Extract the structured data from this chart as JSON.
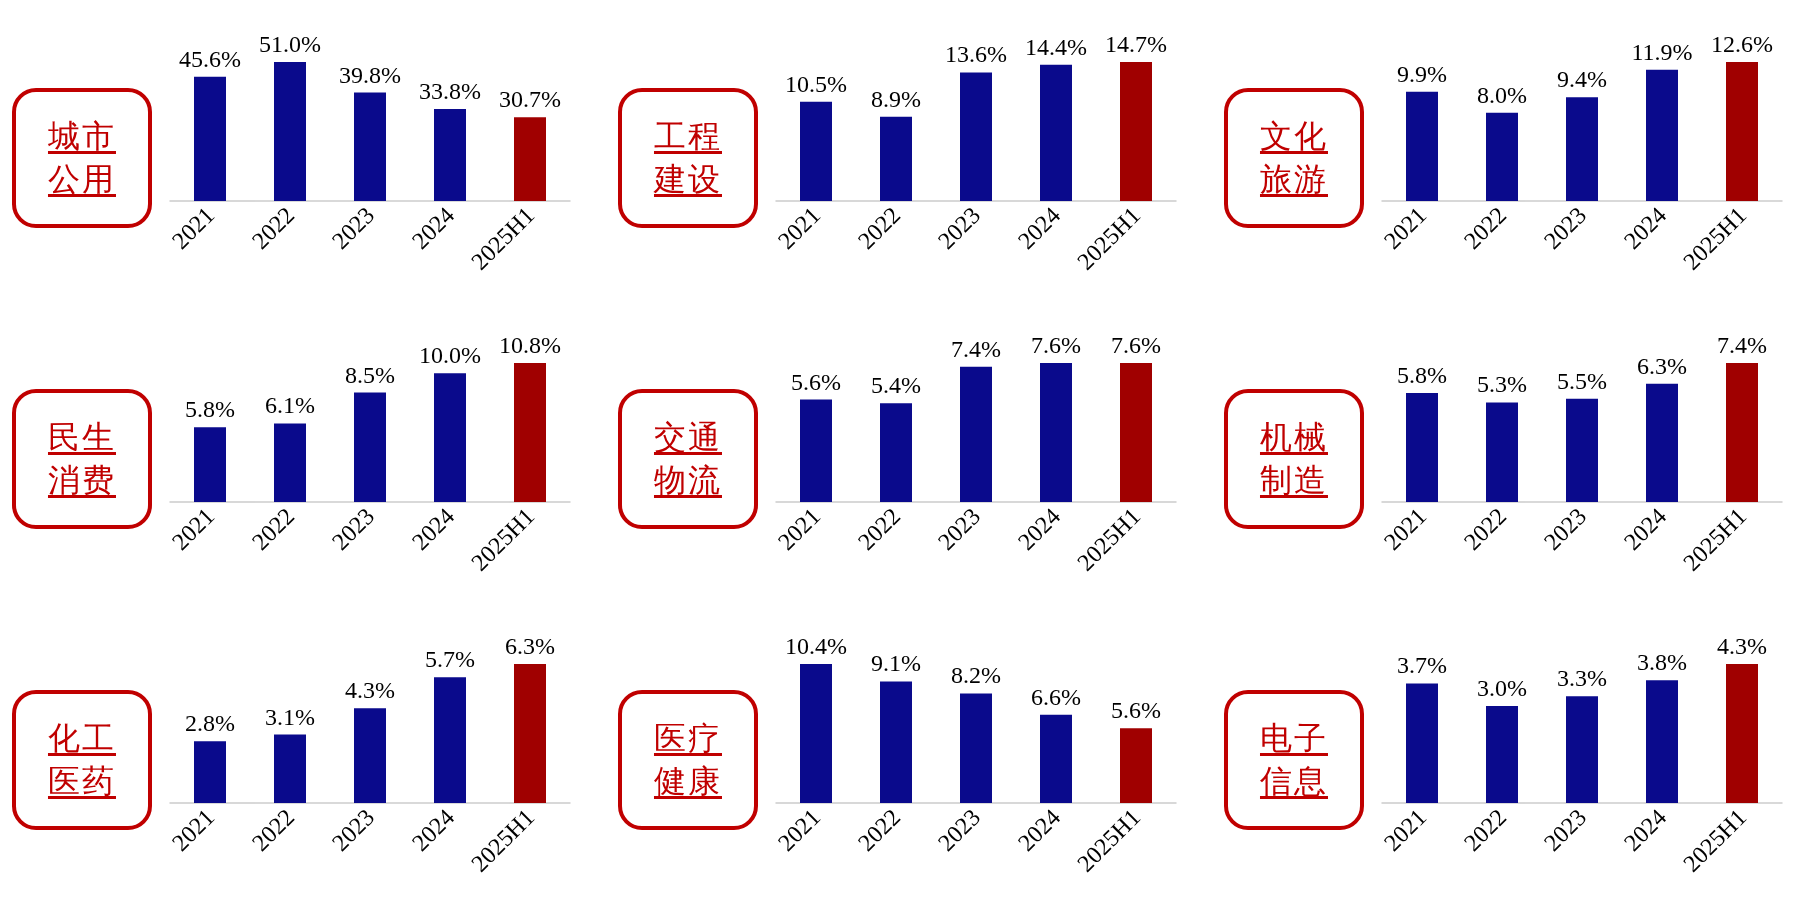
{
  "chart_data": [
    {
      "type": "bar",
      "title": "城市公用",
      "categories": [
        "2021",
        "2022",
        "2023",
        "2024",
        "2025H1"
      ],
      "values": [
        45.6,
        51.0,
        39.8,
        33.8,
        30.7
      ],
      "value_labels": [
        "45.6%",
        "51.0%",
        "39.8%",
        "33.8%",
        "30.7%"
      ],
      "colors": [
        "#0a0a8c",
        "#0a0a8c",
        "#0a0a8c",
        "#0a0a8c",
        "#a00000"
      ]
    },
    {
      "type": "bar",
      "title": "工程建设",
      "categories": [
        "2021",
        "2022",
        "2023",
        "2024",
        "2025H1"
      ],
      "values": [
        10.5,
        8.9,
        13.6,
        14.4,
        14.7
      ],
      "value_labels": [
        "10.5%",
        "8.9%",
        "13.6%",
        "14.4%",
        "14.7%"
      ],
      "colors": [
        "#0a0a8c",
        "#0a0a8c",
        "#0a0a8c",
        "#0a0a8c",
        "#a00000"
      ]
    },
    {
      "type": "bar",
      "title": "文化旅游",
      "categories": [
        "2021",
        "2022",
        "2023",
        "2024",
        "2025H1"
      ],
      "values": [
        9.9,
        8.0,
        9.4,
        11.9,
        12.6
      ],
      "value_labels": [
        "9.9%",
        "8.0%",
        "9.4%",
        "11.9%",
        "12.6%"
      ],
      "colors": [
        "#0a0a8c",
        "#0a0a8c",
        "#0a0a8c",
        "#0a0a8c",
        "#a00000"
      ]
    },
    {
      "type": "bar",
      "title": "民生消费",
      "categories": [
        "2021",
        "2022",
        "2023",
        "2024",
        "2025H1"
      ],
      "values": [
        5.8,
        6.1,
        8.5,
        10.0,
        10.8
      ],
      "value_labels": [
        "5.8%",
        "6.1%",
        "8.5%",
        "10.0%",
        "10.8%"
      ],
      "colors": [
        "#0a0a8c",
        "#0a0a8c",
        "#0a0a8c",
        "#0a0a8c",
        "#a00000"
      ]
    },
    {
      "type": "bar",
      "title": "交通物流",
      "categories": [
        "2021",
        "2022",
        "2023",
        "2024",
        "2025H1"
      ],
      "values": [
        5.6,
        5.4,
        7.4,
        7.6,
        7.6
      ],
      "value_labels": [
        "5.6%",
        "5.4%",
        "7.4%",
        "7.6%",
        "7.6%"
      ],
      "colors": [
        "#0a0a8c",
        "#0a0a8c",
        "#0a0a8c",
        "#0a0a8c",
        "#a00000"
      ]
    },
    {
      "type": "bar",
      "title": "机械制造",
      "categories": [
        "2021",
        "2022",
        "2023",
        "2024",
        "2025H1"
      ],
      "values": [
        5.8,
        5.3,
        5.5,
        6.3,
        7.4
      ],
      "value_labels": [
        "5.8%",
        "5.3%",
        "5.5%",
        "6.3%",
        "7.4%"
      ],
      "colors": [
        "#0a0a8c",
        "#0a0a8c",
        "#0a0a8c",
        "#0a0a8c",
        "#a00000"
      ]
    },
    {
      "type": "bar",
      "title": "化工医药",
      "categories": [
        "2021",
        "2022",
        "2023",
        "2024",
        "2025H1"
      ],
      "values": [
        2.8,
        3.1,
        4.3,
        5.7,
        6.3
      ],
      "value_labels": [
        "2.8%",
        "3.1%",
        "4.3%",
        "5.7%",
        "6.3%"
      ],
      "colors": [
        "#0a0a8c",
        "#0a0a8c",
        "#0a0a8c",
        "#0a0a8c",
        "#a00000"
      ]
    },
    {
      "type": "bar",
      "title": "医疗健康",
      "categories": [
        "2021",
        "2022",
        "2023",
        "2024",
        "2025H1"
      ],
      "values": [
        10.4,
        9.1,
        8.2,
        6.6,
        5.6
      ],
      "value_labels": [
        "10.4%",
        "9.1%",
        "8.2%",
        "6.6%",
        "5.6%"
      ],
      "colors": [
        "#0a0a8c",
        "#0a0a8c",
        "#0a0a8c",
        "#0a0a8c",
        "#a00000"
      ]
    },
    {
      "type": "bar",
      "title": "电子信息",
      "categories": [
        "2021",
        "2022",
        "2023",
        "2024",
        "2025H1"
      ],
      "values": [
        3.7,
        3.0,
        3.3,
        3.8,
        4.3
      ],
      "value_labels": [
        "3.7%",
        "3.0%",
        "3.3%",
        "3.8%",
        "4.3%"
      ],
      "colors": [
        "#0a0a8c",
        "#0a0a8c",
        "#0a0a8c",
        "#0a0a8c",
        "#a00000"
      ]
    }
  ]
}
